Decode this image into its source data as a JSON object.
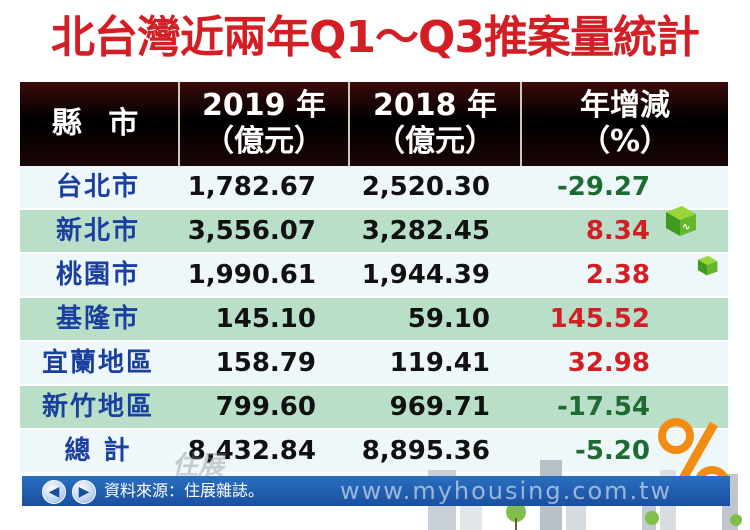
{
  "title": "北台灣近兩年Q1～Q3推案量統計",
  "chart_data": {
    "type": "table",
    "columns": [
      {
        "label_line1": "縣 市",
        "label_line2": ""
      },
      {
        "label_line1": "2019 年",
        "label_line2": "（億元）"
      },
      {
        "label_line1": "2018 年",
        "label_line2": "（億元）"
      },
      {
        "label_line1": "年增減",
        "label_line2": "（%）"
      }
    ],
    "rows": [
      {
        "county": "台北市",
        "v2019": "1,782.67",
        "v2018": "2,520.30",
        "change": "-29.27"
      },
      {
        "county": "新北市",
        "v2019": "3,556.07",
        "v2018": "3,282.45",
        "change": "8.34"
      },
      {
        "county": "桃園市",
        "v2019": "1,990.61",
        "v2018": "1,944.39",
        "change": "2.38"
      },
      {
        "county": "基隆市",
        "v2019": "145.10",
        "v2018": "59.10",
        "change": "145.52"
      },
      {
        "county": "宜蘭地區",
        "v2019": "158.79",
        "v2018": "119.41",
        "change": "32.98"
      },
      {
        "county": "新竹地區",
        "v2019": "799.60",
        "v2018": "969.71",
        "change": "-17.54"
      },
      {
        "county": "總 計",
        "v2019": "8,432.84",
        "v2018": "8,895.36",
        "change": "-5.20"
      }
    ]
  },
  "footer": {
    "source": "資料來源：住展雜誌。",
    "watermark": "www.myhousing.com.tw",
    "logo_text": "住展"
  },
  "colors": {
    "title": "#d21e24",
    "county": "#1a3fa0",
    "negative": "#1e6b32",
    "positive": "#d21e24"
  }
}
